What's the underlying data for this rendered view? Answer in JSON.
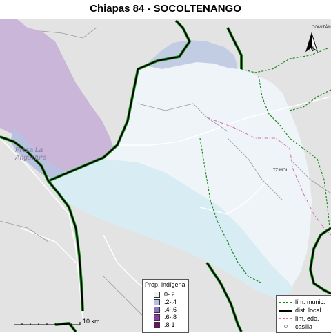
{
  "title": "Chiapas 84 - SOCOLTENANGO",
  "map_labels": {
    "reservoir": "Presa La\nAngostura",
    "comitan": "COMITÁN",
    "tzimol": "TZIMOL"
  },
  "north_arrow": {
    "label": "N",
    "icon": "north-arrow-icon"
  },
  "scale": {
    "label": "10 km"
  },
  "prop_legend": {
    "title": "Prop. indígena",
    "items": [
      {
        "label": "0-.2",
        "color": "#f2f2f2"
      },
      {
        "label": ".2-.4",
        "color": "#b9c0e0"
      },
      {
        "label": ".4-.6",
        "color": "#8a74c4"
      },
      {
        "label": ".6-.8",
        "color": "#8a3aa6"
      },
      {
        "label": ".8-1",
        "color": "#7a0a6a"
      }
    ]
  },
  "line_legend": {
    "items": [
      {
        "label": "lím. munic.",
        "color": "#1a8a1a",
        "style": "dashed"
      },
      {
        "label": "dist. local",
        "color": "#000000",
        "style": "thick"
      },
      {
        "label": "lím. edo.",
        "color": "#d070b0",
        "style": "dashdot"
      },
      {
        "label": "casilla",
        "color": "#888888",
        "style": "point"
      }
    ]
  },
  "colors": {
    "background": "#e3e3e3",
    "district": "#eef4f8",
    "water": "#d8ecf3",
    "purple_region": "#c9b6d9",
    "blue_region": "#c2cde4",
    "district_line": "#000000",
    "municipal_line": "#1a8a1a",
    "road": "#ffffff",
    "state_line": "#d070b0"
  }
}
